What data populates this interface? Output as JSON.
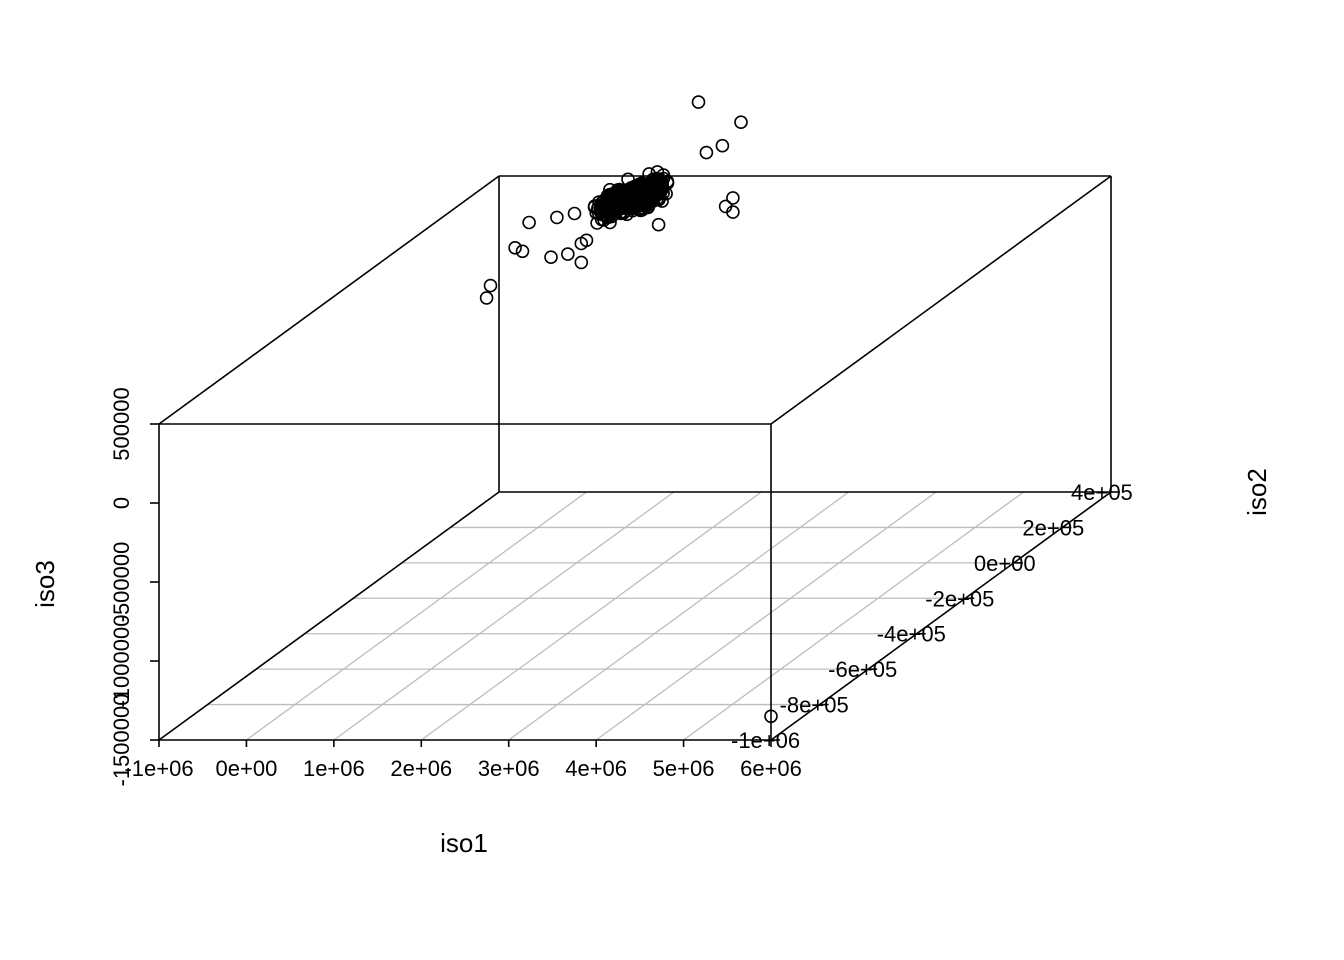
{
  "chart_data": {
    "type": "scatter",
    "subtype": "scatterplot3d",
    "xlabel": "iso1",
    "ylabel": "iso2",
    "zlabel": "iso3",
    "xlim": [
      -1000000,
      6000000
    ],
    "ylim": [
      -1000000,
      400000
    ],
    "zlim": [
      -1500000,
      500000
    ],
    "x_ticks": [
      -1000000,
      0,
      1000000,
      2000000,
      3000000,
      4000000,
      5000000,
      6000000
    ],
    "x_tick_labels": [
      "-1e+06",
      "0e+00",
      "1e+06",
      "2e+06",
      "3e+06",
      "4e+06",
      "5e+06",
      "6e+06"
    ],
    "y_ticks": [
      -1000000,
      -800000,
      -600000,
      -400000,
      -200000,
      0,
      200000,
      400000
    ],
    "y_tick_labels": [
      "-1e+06",
      "-8e+05",
      "-6e+05",
      "-4e+05",
      "-2e+05",
      "0e+00",
      "2e+05",
      "4e+05"
    ],
    "z_ticks": [
      -1500000,
      -1000000,
      -500000,
      0,
      500000
    ],
    "z_tick_labels": [
      "-1500000",
      "-1000000",
      "-500000",
      "0",
      "500000"
    ],
    "grid": true,
    "box": true,
    "marker": "open-circle",
    "cluster": {
      "center": [
        700000,
        330000,
        440000
      ],
      "spread": [
        280000,
        45000,
        60000
      ],
      "count": 600
    },
    "points": [
      [
        1560000,
        300000,
        1080000
      ],
      [
        1650000,
        300000,
        760000
      ],
      [
        1990000,
        320000,
        930000
      ],
      [
        1750000,
        330000,
        770000
      ],
      [
        1870000,
        330000,
        440000
      ],
      [
        1870000,
        330000,
        350000
      ],
      [
        1870000,
        300000,
        420000
      ],
      [
        -60000,
        300000,
        350000
      ],
      [
        30000,
        340000,
        330000
      ],
      [
        -100000,
        200000,
        430000
      ],
      [
        -120000,
        180000,
        270000
      ],
      [
        -420000,
        140000,
        20000
      ],
      [
        -320000,
        120000,
        120000
      ],
      [
        -260000,
        200000,
        270000
      ],
      [
        150000,
        200000,
        210000
      ],
      [
        330000,
        260000,
        230000
      ],
      [
        390000,
        260000,
        250000
      ],
      [
        330000,
        260000,
        110000
      ],
      [
        120000,
        280000,
        140000
      ],
      [
        750000,
        320000,
        370000
      ],
      [
        900000,
        330000,
        380000
      ],
      [
        1050000,
        320000,
        440000
      ],
      [
        960000,
        330000,
        420000
      ],
      [
        1020000,
        330000,
        270000
      ],
      [
        6000000,
        -1000000,
        -1350000
      ]
    ]
  }
}
